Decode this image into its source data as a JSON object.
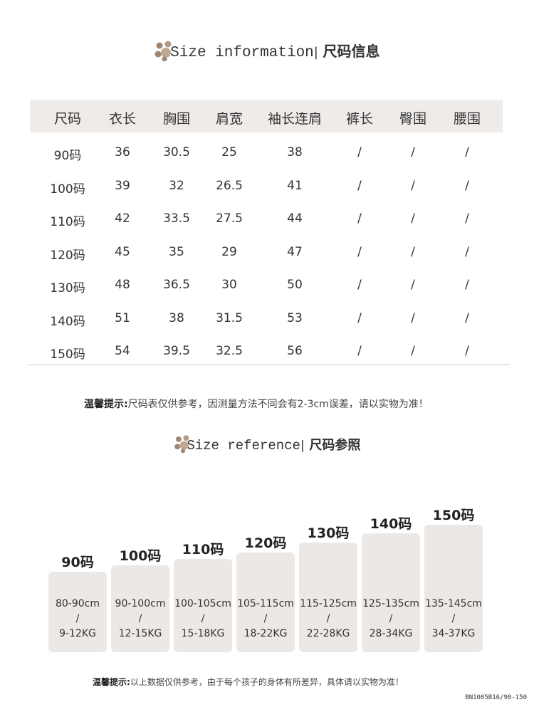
{
  "section1": {
    "title_en": "Size information",
    "title_cn": "尺码信息"
  },
  "table": {
    "headers": [
      "尺码",
      "衣长",
      "胸围",
      "肩宽",
      "袖长连肩",
      "裤长",
      "臀围",
      "腰围"
    ],
    "rows": [
      [
        "90码",
        "36",
        "30.5",
        "25",
        "38",
        "/",
        "/",
        "/"
      ],
      [
        "100码",
        "39",
        "32",
        "26.5",
        "41",
        "/",
        "/",
        "/"
      ],
      [
        "110码",
        "42",
        "33.5",
        "27.5",
        "44",
        "/",
        "/",
        "/"
      ],
      [
        "120码",
        "45",
        "35",
        "29",
        "47",
        "/",
        "/",
        "/"
      ],
      [
        "130码",
        "48",
        "36.5",
        "30",
        "50",
        "/",
        "/",
        "/"
      ],
      [
        "140码",
        "51",
        "38",
        "31.5",
        "53",
        "/",
        "/",
        "/"
      ],
      [
        "150码",
        "54",
        "39.5",
        "32.5",
        "56",
        "/",
        "/",
        "/"
      ]
    ]
  },
  "note1": {
    "label": "温馨提示:",
    "text": "尺码表仅供参考，因测量方法不同会有2-3cm误差，请以实物为准！"
  },
  "section2": {
    "title_en": "Size reference",
    "title_cn": "尺码参照"
  },
  "cards": [
    {
      "size": "90码",
      "height": "80-90cm",
      "sep": "/",
      "weight": "9-12KG"
    },
    {
      "size": "100码",
      "height": "90-100cm",
      "sep": "/",
      "weight": "12-15KG"
    },
    {
      "size": "110码",
      "height": "100-105cm",
      "sep": "/",
      "weight": "15-18KG"
    },
    {
      "size": "120码",
      "height": "105-115cm",
      "sep": "/",
      "weight": "18-22KG"
    },
    {
      "size": "130码",
      "height": "115-125cm",
      "sep": "/",
      "weight": "22-28KG"
    },
    {
      "size": "140码",
      "height": "125-135cm",
      "sep": "/",
      "weight": "28-34KG"
    },
    {
      "size": "150码",
      "height": "135-145cm",
      "sep": "/",
      "weight": "34-37KG"
    }
  ],
  "note2": {
    "label": "温馨提示:",
    "text": "以上数据仅供参考，由于每个孩子的身体有所差异，具体请以实物为准！"
  },
  "product_code": "BN1005B16/90-150",
  "colors": {
    "paw": "#a08670",
    "header_band": "#eeebe9",
    "card": "#ece8e5"
  }
}
